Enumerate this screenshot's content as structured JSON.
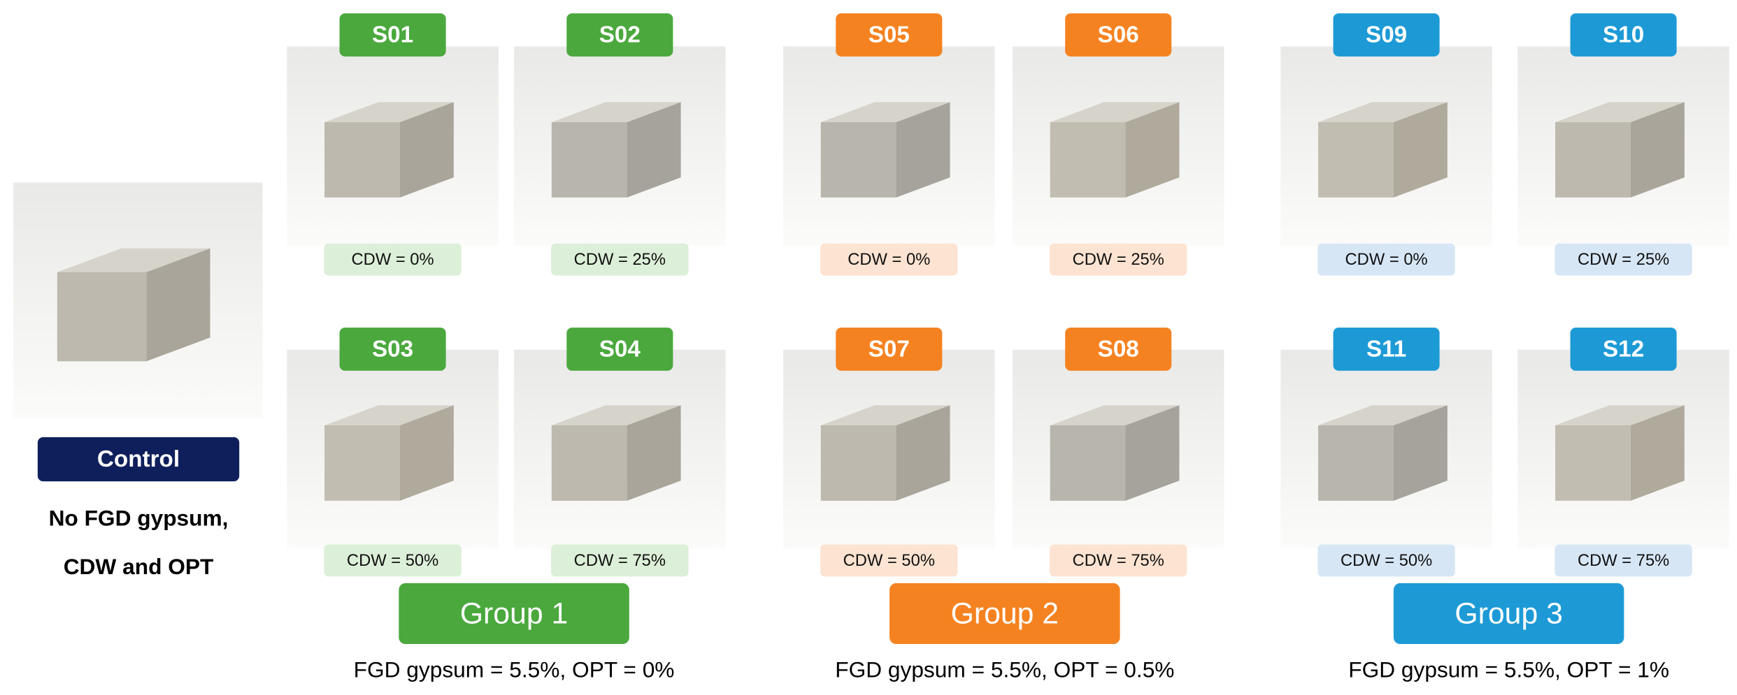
{
  "control": {
    "label": "Control",
    "description": [
      "No FGD gypsum,",
      "CDW and OPT"
    ]
  },
  "groups": [
    {
      "label": "Group 1",
      "description": "FGD gypsum = 5.5%, OPT = 0%",
      "samples": [
        {
          "name": "S01",
          "cdw": "CDW = 0%"
        },
        {
          "name": "S02",
          "cdw": "CDW = 25%"
        },
        {
          "name": "S03",
          "cdw": "CDW = 50%"
        },
        {
          "name": "S04",
          "cdw": "CDW = 75%"
        }
      ]
    },
    {
      "label": "Group 2",
      "description": "FGD gypsum = 5.5%, OPT = 0.5%",
      "samples": [
        {
          "name": "S05",
          "cdw": "CDW = 0%"
        },
        {
          "name": "S06",
          "cdw": "CDW = 25%"
        },
        {
          "name": "S07",
          "cdw": "CDW = 50%"
        },
        {
          "name": "S08",
          "cdw": "CDW = 75%"
        }
      ]
    },
    {
      "label": "Group 3",
      "description": "FGD gypsum = 5.5%, OPT = 1%",
      "samples": [
        {
          "name": "S09",
          "cdw": "CDW = 0%"
        },
        {
          "name": "S10",
          "cdw": "CDW = 25%"
        },
        {
          "name": "S11",
          "cdw": "CDW = 50%"
        },
        {
          "name": "S12",
          "cdw": "CDW = 75%"
        }
      ]
    }
  ]
}
